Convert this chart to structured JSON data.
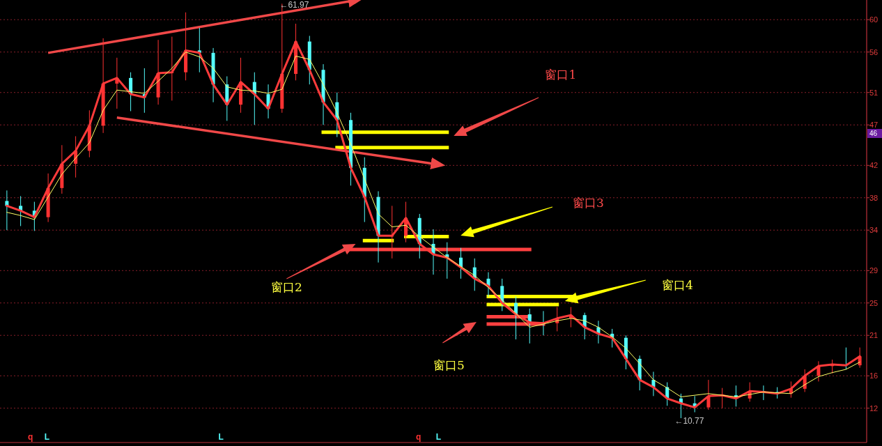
{
  "chart_data": {
    "type": "candlestick",
    "categories": [
      null,
      null,
      null,
      null,
      null,
      null,
      null,
      null,
      null,
      null,
      null,
      null,
      null,
      null,
      null,
      null,
      null,
      null,
      null,
      null,
      null,
      null,
      null,
      null,
      null,
      null,
      null,
      null,
      null,
      null,
      null,
      null,
      null,
      null,
      null,
      null,
      null,
      null,
      null,
      null,
      null,
      null,
      null,
      null,
      null,
      null,
      null,
      null,
      null,
      null,
      null,
      null,
      null,
      null,
      null,
      null,
      null,
      null,
      null,
      null,
      null,
      null,
      null
    ],
    "ohlc": [
      [
        37.6,
        38.9,
        34.0,
        37.0
      ],
      [
        37.0,
        38.2,
        34.5,
        36.4
      ],
      [
        36.4,
        37.5,
        33.9,
        35.6
      ],
      [
        35.6,
        41.0,
        35.0,
        39.2
      ],
      [
        39.2,
        44.5,
        38.5,
        42.2
      ],
      [
        42.2,
        45.6,
        40.5,
        43.8
      ],
      [
        43.8,
        48.8,
        43.0,
        46.9
      ],
      [
        46.9,
        57.7,
        46.0,
        52.1
      ],
      [
        52.1,
        55.3,
        49.0,
        52.8
      ],
      [
        52.8,
        53.5,
        48.7,
        50.8
      ],
      [
        50.8,
        54.0,
        48.5,
        50.4
      ],
      [
        50.4,
        57.5,
        49.5,
        53.4
      ],
      [
        53.4,
        57.9,
        50.0,
        53.5
      ],
      [
        53.5,
        60.9,
        52.5,
        56.2
      ],
      [
        56.2,
        59.0,
        53.5,
        55.9
      ],
      [
        55.9,
        56.5,
        49.8,
        52.0
      ],
      [
        52.0,
        53.0,
        47.5,
        49.5
      ],
      [
        49.5,
        55.3,
        48.5,
        52.3
      ],
      [
        52.3,
        53.5,
        47.0,
        50.8
      ],
      [
        50.8,
        52.0,
        47.8,
        49.0
      ],
      [
        49.0,
        61.97,
        48.5,
        53.3
      ],
      [
        53.3,
        59.5,
        52.5,
        57.3
      ],
      [
        57.3,
        58.0,
        52.0,
        53.8
      ],
      [
        53.8,
        54.5,
        47.0,
        49.8
      ],
      [
        49.8,
        51.0,
        45.5,
        47.6
      ],
      [
        47.6,
        48.5,
        39.5,
        41.7
      ],
      [
        41.7,
        43.0,
        35.0,
        38.1
      ],
      [
        38.1,
        38.8,
        30.0,
        33.3
      ],
      [
        33.3,
        37.0,
        30.5,
        33.3
      ],
      [
        33.3,
        37.5,
        32.5,
        35.5
      ],
      [
        35.5,
        36.0,
        30.5,
        32.3
      ],
      [
        32.3,
        34.1,
        28.5,
        31.0
      ],
      [
        31.0,
        32.5,
        28.0,
        30.6
      ],
      [
        30.6,
        31.8,
        28.0,
        29.4
      ],
      [
        29.4,
        30.5,
        26.5,
        28.0
      ],
      [
        28.0,
        28.8,
        25.8,
        27.1
      ],
      [
        27.1,
        28.0,
        24.0,
        25.0
      ],
      [
        25.0,
        25.8,
        20.5,
        23.6
      ],
      [
        23.6,
        24.3,
        20.0,
        22.6
      ],
      [
        22.6,
        24.0,
        21.0,
        22.5
      ],
      [
        22.5,
        24.5,
        21.5,
        23.1
      ],
      [
        23.1,
        24.5,
        22.0,
        23.5
      ],
      [
        23.5,
        23.8,
        20.5,
        22.0
      ],
      [
        22.0,
        22.8,
        20.0,
        21.2
      ],
      [
        21.2,
        21.8,
        19.5,
        20.7
      ],
      [
        20.7,
        21.0,
        16.8,
        18.1
      ],
      [
        18.1,
        18.5,
        14.2,
        15.5
      ],
      [
        15.5,
        16.5,
        13.5,
        14.6
      ],
      [
        14.6,
        15.2,
        12.3,
        13.2
      ],
      [
        13.2,
        13.8,
        10.77,
        12.6
      ],
      [
        12.6,
        13.5,
        11.5,
        12.1
      ],
      [
        12.1,
        15.5,
        11.8,
        13.5
      ],
      [
        13.5,
        14.5,
        12.0,
        13.6
      ],
      [
        13.6,
        14.8,
        12.2,
        13.2
      ],
      [
        13.2,
        15.2,
        12.8,
        14.1
      ],
      [
        14.1,
        14.8,
        13.0,
        14.0
      ],
      [
        14.0,
        14.6,
        13.2,
        13.8
      ],
      [
        13.8,
        15.3,
        13.3,
        14.4
      ],
      [
        14.4,
        16.8,
        14.0,
        16.0
      ],
      [
        16.0,
        17.8,
        15.3,
        17.2
      ],
      [
        17.2,
        18.0,
        16.3,
        17.4
      ],
      [
        17.4,
        19.5,
        16.8,
        17.3
      ],
      [
        17.3,
        19.5,
        17.0,
        18.4
      ]
    ],
    "colors": [
      "#54fcfc",
      "#54fcfc",
      "#54fcfc",
      "#ff3232",
      "#ff3232",
      "#ff3232",
      "#ff3232",
      "#ff3232",
      "#ff3232",
      "#54fcfc",
      "#54fcfc",
      "#ff3232",
      "#ff3232",
      "#ff3232",
      "#54fcfc",
      "#54fcfc",
      "#54fcfc",
      "#ff3232",
      "#54fcfc",
      "#54fcfc",
      "#ff3232",
      "#ff3232",
      "#54fcfc",
      "#54fcfc",
      "#54fcfc",
      "#54fcfc",
      "#54fcfc",
      "#54fcfc",
      "#ff3232",
      "#ff3232",
      "#54fcfc",
      "#54fcfc",
      "#54fcfc",
      "#54fcfc",
      "#54fcfc",
      "#54fcfc",
      "#54fcfc",
      "#54fcfc",
      "#54fcfc",
      "#54fcfc",
      "#ff3232",
      "#ff3232",
      "#54fcfc",
      "#54fcfc",
      "#54fcfc",
      "#54fcfc",
      "#54fcfc",
      "#54fcfc",
      "#54fcfc",
      "#54fcfc",
      "#54fcfc",
      "#ff3232",
      "#ff3232",
      "#54fcfc",
      "#ff3232",
      "#54fcfc",
      "#54fcfc",
      "#ff3232",
      "#ff3232",
      "#ff3232",
      "#ff3232",
      "#54fcfc",
      "#ff3232"
    ],
    "series": [
      {
        "type": "line",
        "color": "#ff3b3b",
        "values": [
          37.0,
          36.4,
          35.6,
          39.2,
          42.2,
          43.8,
          46.9,
          52.1,
          52.8,
          50.8,
          50.4,
          53.4,
          53.5,
          56.2,
          55.9,
          52.0,
          49.5,
          52.3,
          50.8,
          49.0,
          53.3,
          57.3,
          53.8,
          49.8,
          47.6,
          41.7,
          38.1,
          33.3,
          33.3,
          35.5,
          32.3,
          31.0,
          30.6,
          29.4,
          28.0,
          27.1,
          25.0,
          23.6,
          22.6,
          22.5,
          23.1,
          23.5,
          22.0,
          21.2,
          20.7,
          18.1,
          15.5,
          14.6,
          13.2,
          12.6,
          12.1,
          13.5,
          13.6,
          13.2,
          14.1,
          14.0,
          13.8,
          14.4,
          16.0,
          17.2,
          17.4,
          17.3,
          18.4
        ]
      },
      {
        "type": "line",
        "color": "#ffff66",
        "values": [
          36.2,
          35.8,
          35.3,
          38.1,
          40.9,
          42.9,
          44.8,
          48.8,
          51.3,
          51.1,
          50.9,
          52.4,
          54.0,
          56.0,
          55.4,
          54.0,
          51.7,
          51.3,
          51.2,
          50.9,
          51.4,
          55.5,
          55.1,
          52.0,
          48.5,
          44.6,
          40.3,
          36.0,
          34.4,
          34.6,
          33.2,
          31.9,
          30.6,
          29.5,
          28.4,
          26.9,
          25.4,
          23.7,
          22.0,
          22.4,
          22.8,
          23.1,
          22.8,
          22.0,
          20.8,
          19.4,
          17.5,
          15.5,
          14.5,
          13.4,
          13.6,
          13.8,
          13.6,
          13.4,
          13.7,
          14.0,
          13.9,
          13.8,
          14.9,
          15.9,
          16.4,
          16.8,
          17.7
        ]
      },
      {
        "type": "line",
        "color": "#ffff00",
        "values": [
          null,
          null,
          null,
          null,
          null,
          null,
          null,
          null,
          null,
          null,
          null,
          null,
          null,
          null,
          null,
          null,
          null,
          null,
          null,
          null,
          null,
          null,
          null,
          46.1,
          46.1,
          46.1,
          46.1,
          46.1,
          46.1,
          46.1,
          46.1,
          46.1,
          46.1,
          null,
          null,
          null,
          null,
          null,
          null,
          null,
          null,
          null,
          null,
          null,
          null,
          null,
          null,
          null,
          null,
          null,
          null,
          null,
          null,
          null,
          null,
          null,
          null,
          null,
          null,
          null,
          null,
          null,
          null
        ]
      },
      {
        "type": "line",
        "color": "#ffff00",
        "values": [
          null,
          null,
          null,
          null,
          null,
          null,
          null,
          null,
          null,
          null,
          null,
          null,
          null,
          null,
          null,
          null,
          null,
          null,
          null,
          null,
          null,
          null,
          null,
          null,
          44.2,
          44.2,
          44.2,
          44.2,
          44.2,
          44.2,
          44.2,
          44.2,
          44.2,
          null,
          null,
          null,
          null,
          null,
          null,
          null,
          null,
          null,
          null,
          null,
          null,
          null,
          null,
          null,
          null,
          null,
          null,
          null,
          null,
          null,
          null,
          null,
          null,
          null,
          null,
          null,
          null,
          null,
          null
        ]
      },
      {
        "type": "line",
        "color": "#ffff00",
        "values": [
          null,
          null,
          null,
          null,
          null,
          null,
          null,
          null,
          null,
          null,
          null,
          null,
          null,
          null,
          null,
          null,
          null,
          null,
          null,
          null,
          null,
          null,
          null,
          null,
          null,
          null,
          32.7,
          32.7,
          32.7,
          null,
          null,
          null,
          null,
          null,
          null,
          null,
          null,
          null,
          null,
          null,
          null,
          null,
          null,
          null,
          null,
          null,
          null,
          null,
          null,
          null,
          null,
          null,
          null,
          null,
          null,
          null,
          null,
          null,
          null,
          null,
          null,
          null,
          null
        ]
      },
      {
        "type": "line",
        "color": "#ffff00",
        "values": [
          null,
          null,
          null,
          null,
          null,
          null,
          null,
          null,
          null,
          null,
          null,
          null,
          null,
          null,
          null,
          null,
          null,
          null,
          null,
          null,
          null,
          null,
          null,
          null,
          null,
          null,
          null,
          null,
          null,
          33.2,
          33.2,
          33.2,
          33.2,
          null,
          null,
          null,
          null,
          null,
          null,
          null,
          null,
          null,
          null,
          null,
          null,
          null,
          null,
          null,
          null,
          null,
          null,
          null,
          null,
          null,
          null,
          null,
          null,
          null,
          null,
          null,
          null,
          null,
          null
        ]
      },
      {
        "type": "line",
        "color": "#ff4040",
        "values": [
          null,
          null,
          null,
          null,
          null,
          null,
          null,
          null,
          null,
          null,
          null,
          null,
          null,
          null,
          null,
          null,
          null,
          null,
          null,
          null,
          null,
          null,
          null,
          null,
          null,
          31.6,
          31.6,
          31.6,
          31.6,
          31.6,
          31.6,
          31.6,
          31.6,
          31.6,
          31.6,
          31.6,
          31.6,
          31.6,
          31.6,
          null,
          null,
          null,
          null,
          null,
          null,
          null,
          null,
          null,
          null,
          null,
          null,
          null,
          null,
          null,
          null,
          null,
          null,
          null,
          null,
          null,
          null,
          null,
          null
        ]
      },
      {
        "type": "line",
        "color": "#ffff00",
        "values": [
          null,
          null,
          null,
          null,
          null,
          null,
          null,
          null,
          null,
          null,
          null,
          null,
          null,
          null,
          null,
          null,
          null,
          null,
          null,
          null,
          null,
          null,
          null,
          null,
          null,
          null,
          null,
          null,
          null,
          null,
          null,
          null,
          null,
          null,
          null,
          25.8,
          25.8,
          25.8,
          25.8,
          25.8,
          25.8,
          25.8,
          null,
          null,
          null,
          null,
          null,
          null,
          null,
          null,
          null,
          null,
          null,
          null,
          null,
          null,
          null,
          null,
          null,
          null,
          null,
          null,
          null
        ]
      },
      {
        "type": "line",
        "color": "#ffff00",
        "values": [
          null,
          null,
          null,
          null,
          null,
          null,
          null,
          null,
          null,
          null,
          null,
          null,
          null,
          null,
          null,
          null,
          null,
          null,
          null,
          null,
          null,
          null,
          null,
          null,
          null,
          null,
          null,
          null,
          null,
          null,
          null,
          null,
          null,
          null,
          null,
          24.8,
          24.8,
          24.8,
          24.8,
          24.8,
          24.8,
          null,
          null,
          null,
          null,
          null,
          null,
          null,
          null,
          null,
          null,
          null,
          null,
          null,
          null,
          null,
          null,
          null,
          null,
          null,
          null,
          null,
          null
        ]
      },
      {
        "type": "line",
        "color": "#ff4040",
        "values": [
          null,
          null,
          null,
          null,
          null,
          null,
          null,
          null,
          null,
          null,
          null,
          null,
          null,
          null,
          null,
          null,
          null,
          null,
          null,
          null,
          null,
          null,
          null,
          null,
          null,
          null,
          null,
          null,
          null,
          null,
          null,
          null,
          null,
          null,
          null,
          23.3,
          23.3,
          23.3,
          23.3,
          null,
          null,
          null,
          null,
          null,
          null,
          null,
          null,
          null,
          null,
          null,
          null,
          null,
          null,
          null,
          null,
          null,
          null,
          null,
          null,
          null,
          null,
          null,
          null
        ]
      },
      {
        "type": "line",
        "color": "#ff4040",
        "values": [
          null,
          null,
          null,
          null,
          null,
          null,
          null,
          null,
          null,
          null,
          null,
          null,
          null,
          null,
          null,
          null,
          null,
          null,
          null,
          null,
          null,
          null,
          null,
          null,
          null,
          null,
          null,
          null,
          null,
          null,
          null,
          null,
          null,
          null,
          null,
          22.4,
          22.4,
          22.4,
          22.4,
          22.4,
          null,
          null,
          null,
          null,
          null,
          null,
          null,
          null,
          null,
          null,
          null,
          null,
          null,
          null,
          null,
          null,
          null,
          null,
          null,
          null,
          null,
          null,
          null
        ]
      },
      {
        "type": "line",
        "color": "#f04848",
        "values": [
          null,
          null,
          null,
          55.9,
          null,
          null,
          null,
          null,
          null,
          null,
          null,
          null,
          null,
          null,
          null,
          null,
          null,
          null,
          null,
          null,
          null,
          null,
          null,
          null,
          null,
          62.3,
          null,
          null,
          null,
          null,
          null,
          null,
          null,
          null,
          null,
          null,
          null,
          null,
          null,
          null,
          null,
          null,
          null,
          null,
          null,
          null,
          null,
          null,
          null,
          null,
          null,
          null,
          null,
          null,
          null,
          null,
          null,
          null,
          null,
          null,
          null,
          null,
          null
        ]
      },
      {
        "type": "line",
        "color": "#f04848",
        "values": [
          null,
          null,
          null,
          null,
          null,
          null,
          null,
          null,
          47.9,
          null,
          null,
          null,
          null,
          null,
          null,
          null,
          null,
          null,
          null,
          null,
          null,
          null,
          null,
          null,
          null,
          null,
          null,
          null,
          null,
          null,
          null,
          42.2,
          null,
          null,
          null,
          null,
          null,
          null,
          null,
          null,
          null,
          null,
          null,
          null,
          null,
          null,
          null,
          null,
          null,
          null,
          null,
          null,
          null,
          null,
          null,
          null,
          null,
          null,
          null,
          null,
          null,
          null,
          null
        ]
      }
    ],
    "ylim": [
      7.76,
      62.43
    ],
    "yticks": [
      12,
      16,
      21,
      25,
      29,
      34,
      38,
      42,
      47,
      51,
      56,
      60
    ],
    "grid": "y",
    "tick_labels": "y",
    "annotations": [
      "窗口1",
      "窗口2",
      "窗口3",
      "窗口4",
      "窗口5",
      "←61.97",
      "←10.77",
      "46",
      "q",
      "L",
      "L",
      "q",
      "L"
    ]
  }
}
